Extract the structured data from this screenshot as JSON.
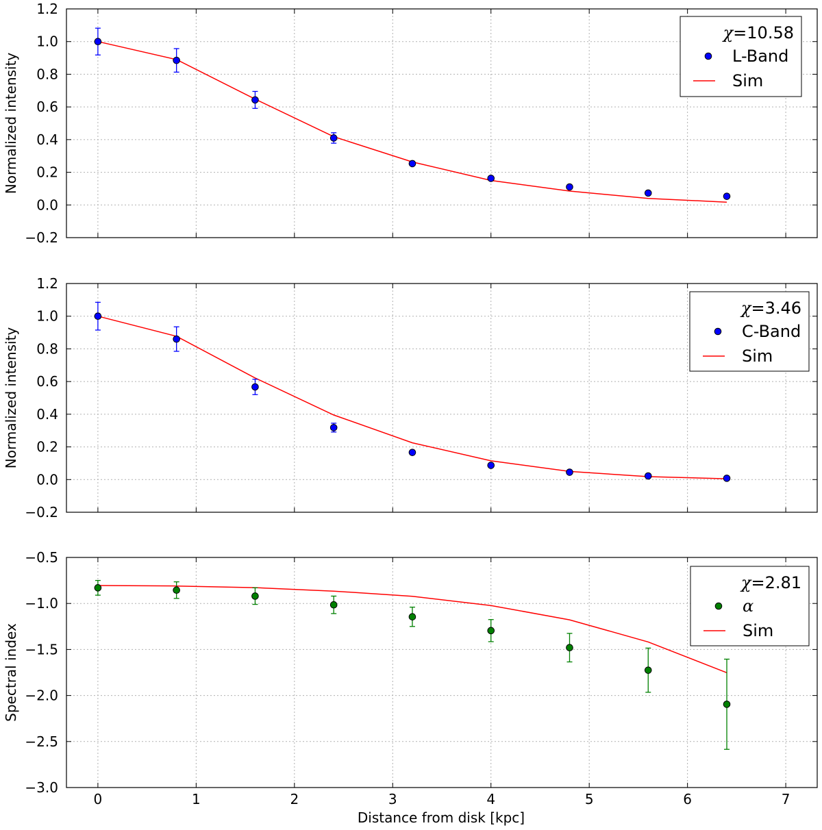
{
  "chart_data": [
    {
      "type": "scatter",
      "ylabel": "Normalized intensity",
      "xlabel": "",
      "xlim": [
        -0.32,
        7.32
      ],
      "ylim": [
        -0.2,
        1.2
      ],
      "xticks": [
        "0",
        "1",
        "2",
        "3",
        "4",
        "5",
        "6",
        "7"
      ],
      "yticks": [
        "−0.2",
        "0.0",
        "0.2",
        "0.4",
        "0.6",
        "0.8",
        "1.0",
        "1.2"
      ],
      "ytick_values": [
        -0.2,
        0.0,
        0.2,
        0.4,
        0.6,
        0.8,
        1.0,
        1.2
      ],
      "grid": true,
      "legend_position": "top-right",
      "chi_label": "=10.58",
      "series": [
        {
          "name": "L-Band",
          "kind": "points",
          "color": "#0000ff",
          "x": [
            0,
            0.8,
            1.6,
            2.4,
            3.2,
            4.0,
            4.8,
            5.6,
            6.4
          ],
          "y": [
            1.0,
            0.885,
            0.643,
            0.41,
            0.253,
            0.163,
            0.11,
            0.073,
            0.053
          ],
          "yerr": [
            0.082,
            0.072,
            0.052,
            0.032,
            0.012,
            0.008,
            0.006,
            0.005,
            0.004
          ]
        },
        {
          "name": "Sim",
          "kind": "line",
          "color": "#ff0000",
          "x": [
            0,
            0.8,
            1.6,
            2.4,
            3.2,
            4.0,
            4.8,
            5.6,
            6.4
          ],
          "y": [
            1.0,
            0.89,
            0.648,
            0.418,
            0.263,
            0.15,
            0.085,
            0.04,
            0.017
          ]
        }
      ]
    },
    {
      "type": "scatter",
      "ylabel": "Normalized intensity",
      "xlabel": "",
      "xlim": [
        -0.32,
        7.32
      ],
      "ylim": [
        -0.2,
        1.2
      ],
      "xticks": [
        "0",
        "1",
        "2",
        "3",
        "4",
        "5",
        "6",
        "7"
      ],
      "yticks": [
        "−0.2",
        "0.0",
        "0.2",
        "0.4",
        "0.6",
        "0.8",
        "1.0",
        "1.2"
      ],
      "ytick_values": [
        -0.2,
        0.0,
        0.2,
        0.4,
        0.6,
        0.8,
        1.0,
        1.2
      ],
      "grid": true,
      "legend_position": "top-right",
      "chi_label": "=3.46",
      "series": [
        {
          "name": "C-Band",
          "kind": "points",
          "color": "#0000ff",
          "x": [
            0,
            0.8,
            1.6,
            2.4,
            3.2,
            4.0,
            4.8,
            5.6,
            6.4
          ],
          "y": [
            1.0,
            0.86,
            0.567,
            0.318,
            0.166,
            0.087,
            0.045,
            0.022,
            0.008
          ],
          "yerr": [
            0.085,
            0.075,
            0.047,
            0.027,
            0.008,
            0.005,
            0.004,
            0.003,
            0.003
          ]
        },
        {
          "name": "Sim",
          "kind": "line",
          "color": "#ff0000",
          "x": [
            0,
            0.8,
            1.6,
            2.4,
            3.2,
            4.0,
            4.8,
            5.6,
            6.4
          ],
          "y": [
            1.0,
            0.877,
            0.622,
            0.395,
            0.225,
            0.115,
            0.05,
            0.018,
            0.005
          ]
        }
      ]
    },
    {
      "type": "scatter",
      "ylabel": "Spectral index",
      "xlabel": "Distance from disk [kpc]",
      "xlim": [
        -0.32,
        7.32
      ],
      "ylim": [
        -3.0,
        -0.5
      ],
      "xticks": [
        "0",
        "1",
        "2",
        "3",
        "4",
        "5",
        "6",
        "7"
      ],
      "yticks": [
        "−3.0",
        "−2.5",
        "−2.0",
        "−1.5",
        "−1.0",
        "−0.5"
      ],
      "ytick_values": [
        -3.0,
        -2.5,
        -2.0,
        -1.5,
        -1.0,
        -0.5
      ],
      "grid": true,
      "legend_position": "top-right",
      "chi_label": "=2.81",
      "series": [
        {
          "name": "α",
          "kind": "points",
          "color": "#008000",
          "x": [
            0,
            0.8,
            1.6,
            2.4,
            3.2,
            4.0,
            4.8,
            5.6,
            6.4
          ],
          "y": [
            -0.83,
            -0.855,
            -0.92,
            -1.015,
            -1.145,
            -1.295,
            -1.48,
            -1.725,
            -2.095
          ],
          "yerr": [
            0.08,
            0.09,
            0.09,
            0.095,
            0.105,
            0.12,
            0.155,
            0.24,
            0.49
          ]
        },
        {
          "name": "Sim",
          "kind": "line",
          "color": "#ff0000",
          "x": [
            0,
            0.8,
            1.6,
            2.4,
            3.2,
            4.0,
            4.8,
            5.6,
            6.4
          ],
          "y": [
            -0.805,
            -0.81,
            -0.828,
            -0.866,
            -0.922,
            -1.022,
            -1.178,
            -1.418,
            -1.752
          ]
        }
      ]
    }
  ]
}
